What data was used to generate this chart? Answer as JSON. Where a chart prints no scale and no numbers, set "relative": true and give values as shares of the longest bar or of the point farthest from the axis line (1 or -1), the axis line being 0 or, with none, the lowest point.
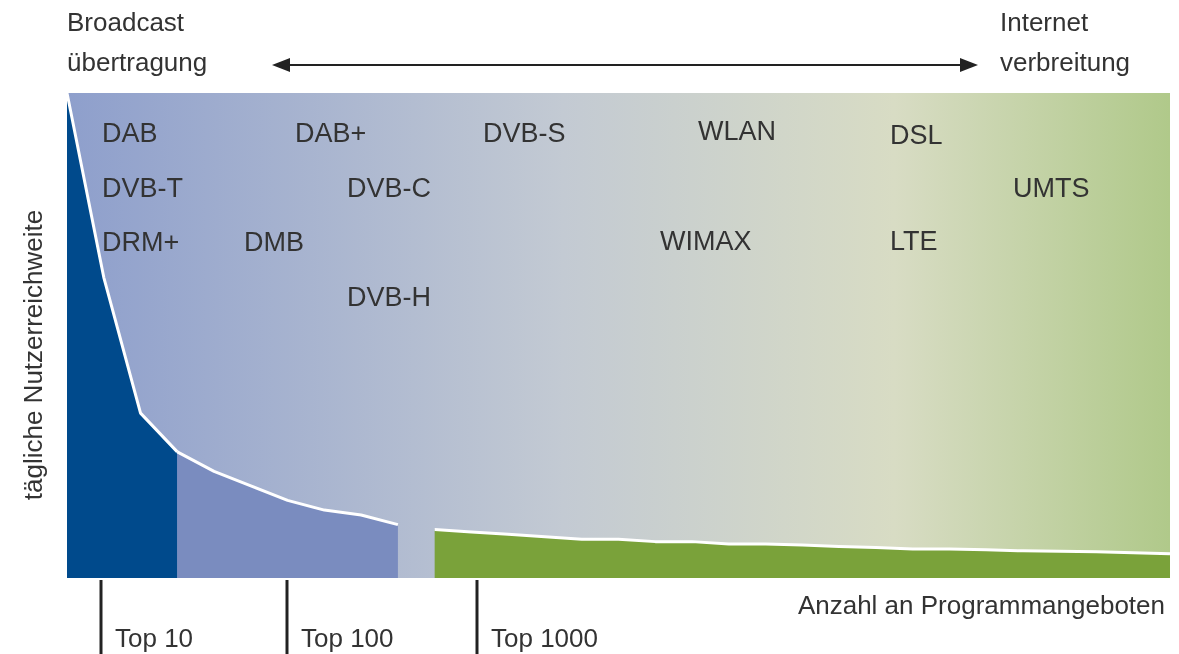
{
  "chart_data": {
    "type": "area",
    "relative": true,
    "xlabel": "Anzahl an Programmangeboten",
    "ylabel": "tägliche Nutzerreichweite",
    "categories": [
      null,
      null,
      null,
      null,
      null,
      null,
      null,
      null,
      null,
      null,
      null,
      null,
      null,
      null,
      null,
      null,
      null,
      null,
      null,
      null,
      null,
      null,
      null,
      null,
      null,
      null,
      null,
      null,
      null,
      null,
      null
    ],
    "series": [
      {
        "color": "#004a8c",
        "values": [
          1.0,
          0.62,
          0.34,
          0.26,
          null,
          null,
          null,
          null,
          null,
          null,
          null,
          null,
          null,
          null,
          null,
          null,
          null,
          null,
          null,
          null,
          null,
          null,
          null,
          null,
          null,
          null,
          null,
          null,
          null,
          null,
          null
        ]
      },
      {
        "color": "#7a8cbf",
        "values": [
          null,
          null,
          null,
          0.26,
          0.22,
          0.19,
          0.16,
          0.14,
          0.13,
          0.11,
          null,
          null,
          null,
          null,
          null,
          null,
          null,
          null,
          null,
          null,
          null,
          null,
          null,
          null,
          null,
          null,
          null,
          null,
          null,
          null,
          null
        ]
      },
      {
        "color": "#7aa23a",
        "values": [
          null,
          null,
          null,
          null,
          null,
          null,
          null,
          null,
          null,
          null,
          0.1,
          0.095,
          0.09,
          0.085,
          0.08,
          0.08,
          0.075,
          0.075,
          0.07,
          0.07,
          0.068,
          0.065,
          0.063,
          0.06,
          0.06,
          0.058,
          0.056,
          0.055,
          0.054,
          0.052,
          0.05
        ]
      }
    ],
    "annotations": [
      "Broadcast übertragung",
      "Internet verbreitung",
      "DAB",
      "DVB-T",
      "DRM+",
      "DMB",
      "DAB+",
      "DVB-C",
      "DVB-H",
      "DVB-S",
      "WLAN",
      "WIMAX",
      "DSL",
      "LTE",
      "UMTS",
      "Top 10",
      "Top 100",
      "Top 1000"
    ]
  }
}
